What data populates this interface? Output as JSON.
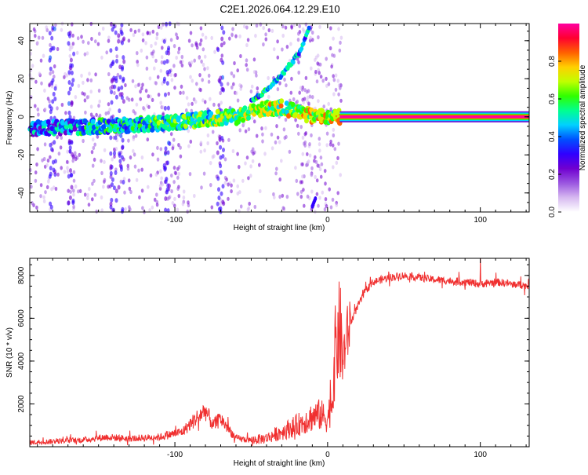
{
  "title": "C2E1.2026.064.12.29.E10",
  "colors": {
    "snr_line": "#f03030",
    "background": "#ffffff",
    "colormap": [
      "#ffffff",
      "#d6b8f0",
      "#9a55e0",
      "#7000d0",
      "#3000ff",
      "#0050ff",
      "#00d0ff",
      "#00ff90",
      "#30ff00",
      "#c0ff00",
      "#ffd000",
      "#ff6000",
      "#ff0030",
      "#ff00a0"
    ]
  },
  "chart_data": [
    {
      "type": "heatmap",
      "title": "",
      "xlabel": "Height of straight line (km)",
      "ylabel": "Frequency (Hz)",
      "xlim": [
        -195,
        132
      ],
      "ylim": [
        -50,
        49
      ],
      "xticks": [
        -100,
        0,
        100
      ],
      "xtick_labels": [
        "-100",
        "0",
        "100"
      ],
      "yticks": [
        -40,
        -20,
        0,
        20,
        40
      ],
      "ytick_labels": [
        "-40",
        "-20",
        "0",
        "20",
        "40"
      ],
      "colorbar": {
        "label": "Normalized spectral amplitude",
        "range": [
          0,
          1
        ],
        "ticks": [
          0.0,
          0.2,
          0.4,
          0.6,
          0.8
        ],
        "tick_labels": [
          "0.0",
          "0.2",
          "0.4",
          "0.6",
          "0.8"
        ]
      },
      "features": {
        "main_ridge": {
          "x": [
            -195,
            -150,
            -100,
            -80,
            -60,
            -45,
            -30,
            -15,
            -5,
            10,
            132
          ],
          "y": [
            -6,
            -5,
            -3,
            -1,
            0,
            4,
            5,
            1,
            0,
            0,
            0
          ]
        },
        "diverging_branch": {
          "x": [
            -50,
            -40,
            -30,
            -20,
            -15,
            -12
          ],
          "y": [
            8,
            14,
            22,
            32,
            40,
            47
          ]
        },
        "low_fragment": {
          "x": [
            -10,
            -8
          ],
          "y": [
            -47,
            -43
          ]
        }
      }
    },
    {
      "type": "line",
      "title": "",
      "xlabel": "Height of straight line (km)",
      "ylabel": "SNR (10 * v/v)",
      "xlim": [
        -195,
        132
      ],
      "ylim": [
        0,
        8800
      ],
      "xticks": [
        -100,
        0,
        100
      ],
      "xtick_labels": [
        "-100",
        "0",
        "100"
      ],
      "yticks": [
        2000,
        4000,
        6000,
        8000
      ],
      "ytick_labels": [
        "2000",
        "4000",
        "6000",
        "8000"
      ],
      "series": [
        {
          "name": "SNR",
          "x": [
            -195,
            -180,
            -160,
            -145,
            -130,
            -110,
            -95,
            -85,
            -80,
            -75,
            -70,
            -60,
            -50,
            -40,
            -30,
            -20,
            -10,
            -5,
            0,
            3,
            5,
            8,
            10,
            12,
            15,
            20,
            25,
            30,
            40,
            50,
            70,
            90,
            100,
            110,
            132
          ],
          "y": [
            200,
            250,
            320,
            450,
            380,
            450,
            700,
            1400,
            1700,
            1000,
            1300,
            400,
            300,
            400,
            700,
            1000,
            1400,
            1500,
            1300,
            2200,
            4500,
            5500,
            4000,
            5000,
            5800,
            6600,
            7300,
            7700,
            7900,
            8000,
            7800,
            7700,
            7600,
            7700,
            7500
          ]
        }
      ]
    }
  ]
}
